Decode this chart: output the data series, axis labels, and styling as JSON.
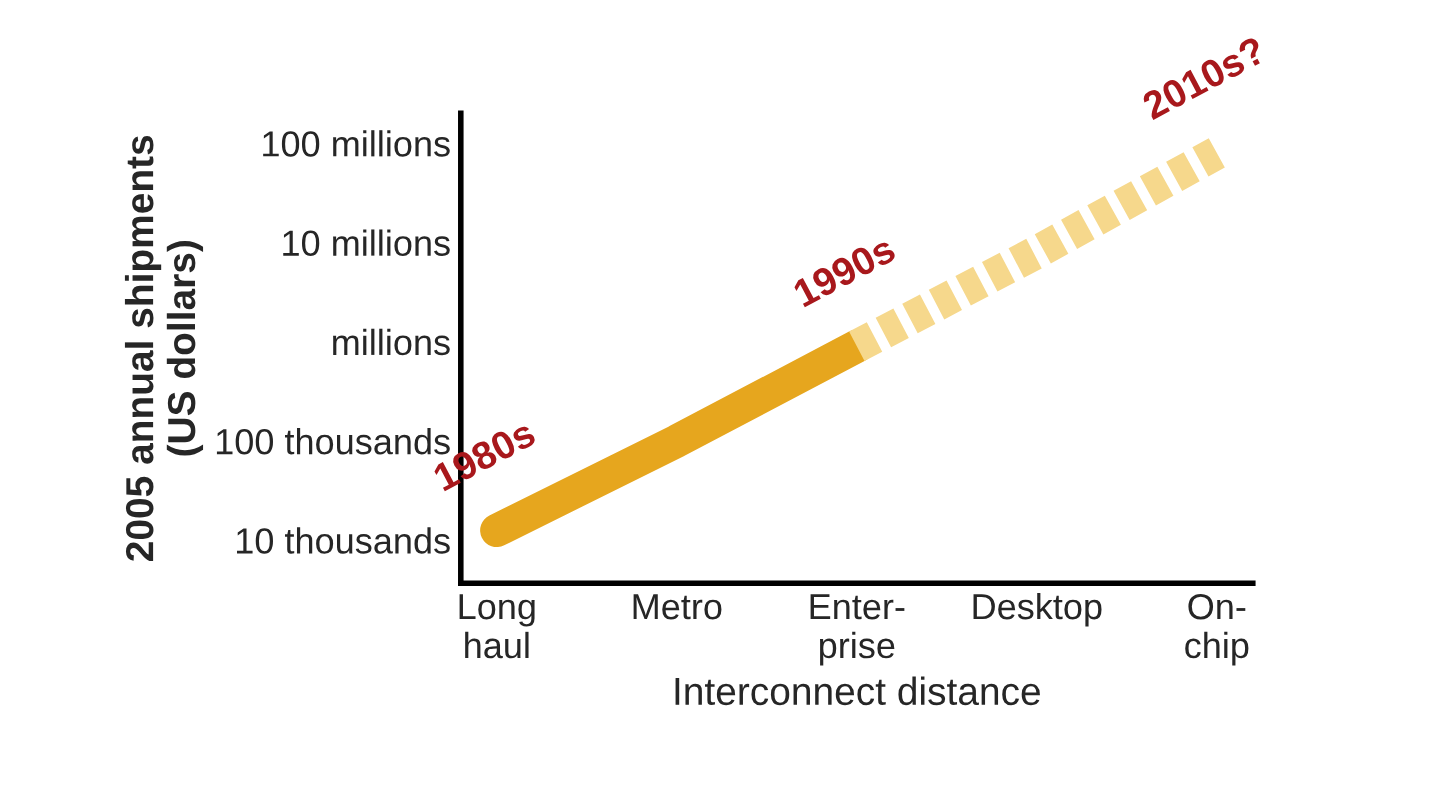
{
  "chart_data": {
    "type": "line",
    "xlabel": "Interconnect distance",
    "ylabel": "2005 annual shipments\n(US dollars)",
    "categories": [
      "Long\nhaul",
      "Metro",
      "Enter-\nprise",
      "Desktop",
      "On-\nchip"
    ],
    "series": [
      {
        "color": "#e6a61e",
        "line_style": "solid",
        "values": [
          12600,
          100000,
          900000,
          null,
          null
        ]
      },
      {
        "color": "#f6d88c",
        "line_style": "dashed",
        "values": [
          null,
          null,
          900000,
          8000000,
          80000000
        ]
      }
    ],
    "log": true,
    "ylim": [
      3700,
      200000000
    ],
    "yticks": [
      {
        "value": 10000,
        "label": "10 thousands"
      },
      {
        "value": 100000,
        "label": "100 thousands"
      },
      {
        "value": 1000000,
        "label": "millions"
      },
      {
        "value": 10000000,
        "label": "10 millions"
      },
      {
        "value": 100000000,
        "label": "100 millions"
      }
    ],
    "grid": false,
    "legend": false,
    "marker": "none",
    "annotations": [
      {
        "text": "1980s",
        "x": "Long\nhaul",
        "y": 12600
      },
      {
        "text": "1990s",
        "x": "Enter-\nprise",
        "y": 900000
      },
      {
        "text": "2010s?",
        "x": "On-\nchip",
        "y": 80000000
      }
    ]
  }
}
